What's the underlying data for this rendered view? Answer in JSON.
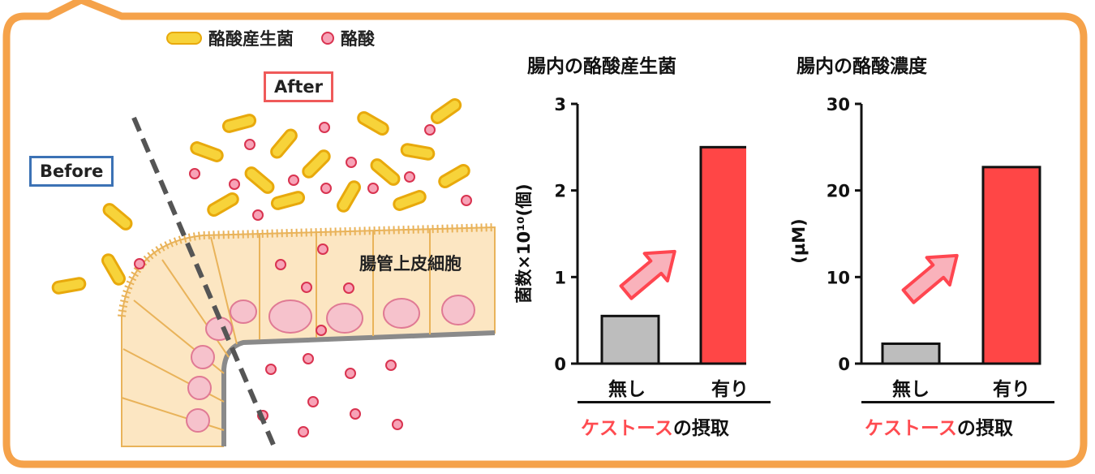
{
  "legend": {
    "bacteria_label": "酪酸産生菌",
    "acid_label": "酪酸"
  },
  "illustration": {
    "after_label": "After",
    "before_label": "Before",
    "epithelium_label": "腸管上皮細胞"
  },
  "colors": {
    "frame": "#f5a24a",
    "bar_none": "#bdbdbd",
    "bar_yes": "#ff4646",
    "highlight": "#ff4b50",
    "bacteria": "#f7d33a",
    "acid": "#f7a3b7"
  },
  "chart_data": [
    {
      "type": "bar",
      "title": "腸内の酪酸産生菌",
      "ylabel": "菌数×10¹⁰(個)",
      "categories": [
        "無し",
        "有り"
      ],
      "values": [
        0.55,
        2.5
      ],
      "ylim": [
        0,
        3
      ],
      "yticks": [
        "0",
        "1",
        "2",
        "3"
      ],
      "xlabel_prefix": "ケストース",
      "xlabel_suffix": "の摂取"
    },
    {
      "type": "bar",
      "title": "腸内の酪酸濃度",
      "ylabel": "(µM)",
      "categories": [
        "無し",
        "有り"
      ],
      "values": [
        2.3,
        22.7
      ],
      "ylim": [
        0,
        30
      ],
      "yticks": [
        "0",
        "10",
        "20",
        "30"
      ],
      "xlabel_prefix": "ケストース",
      "xlabel_suffix": "の摂取"
    }
  ]
}
